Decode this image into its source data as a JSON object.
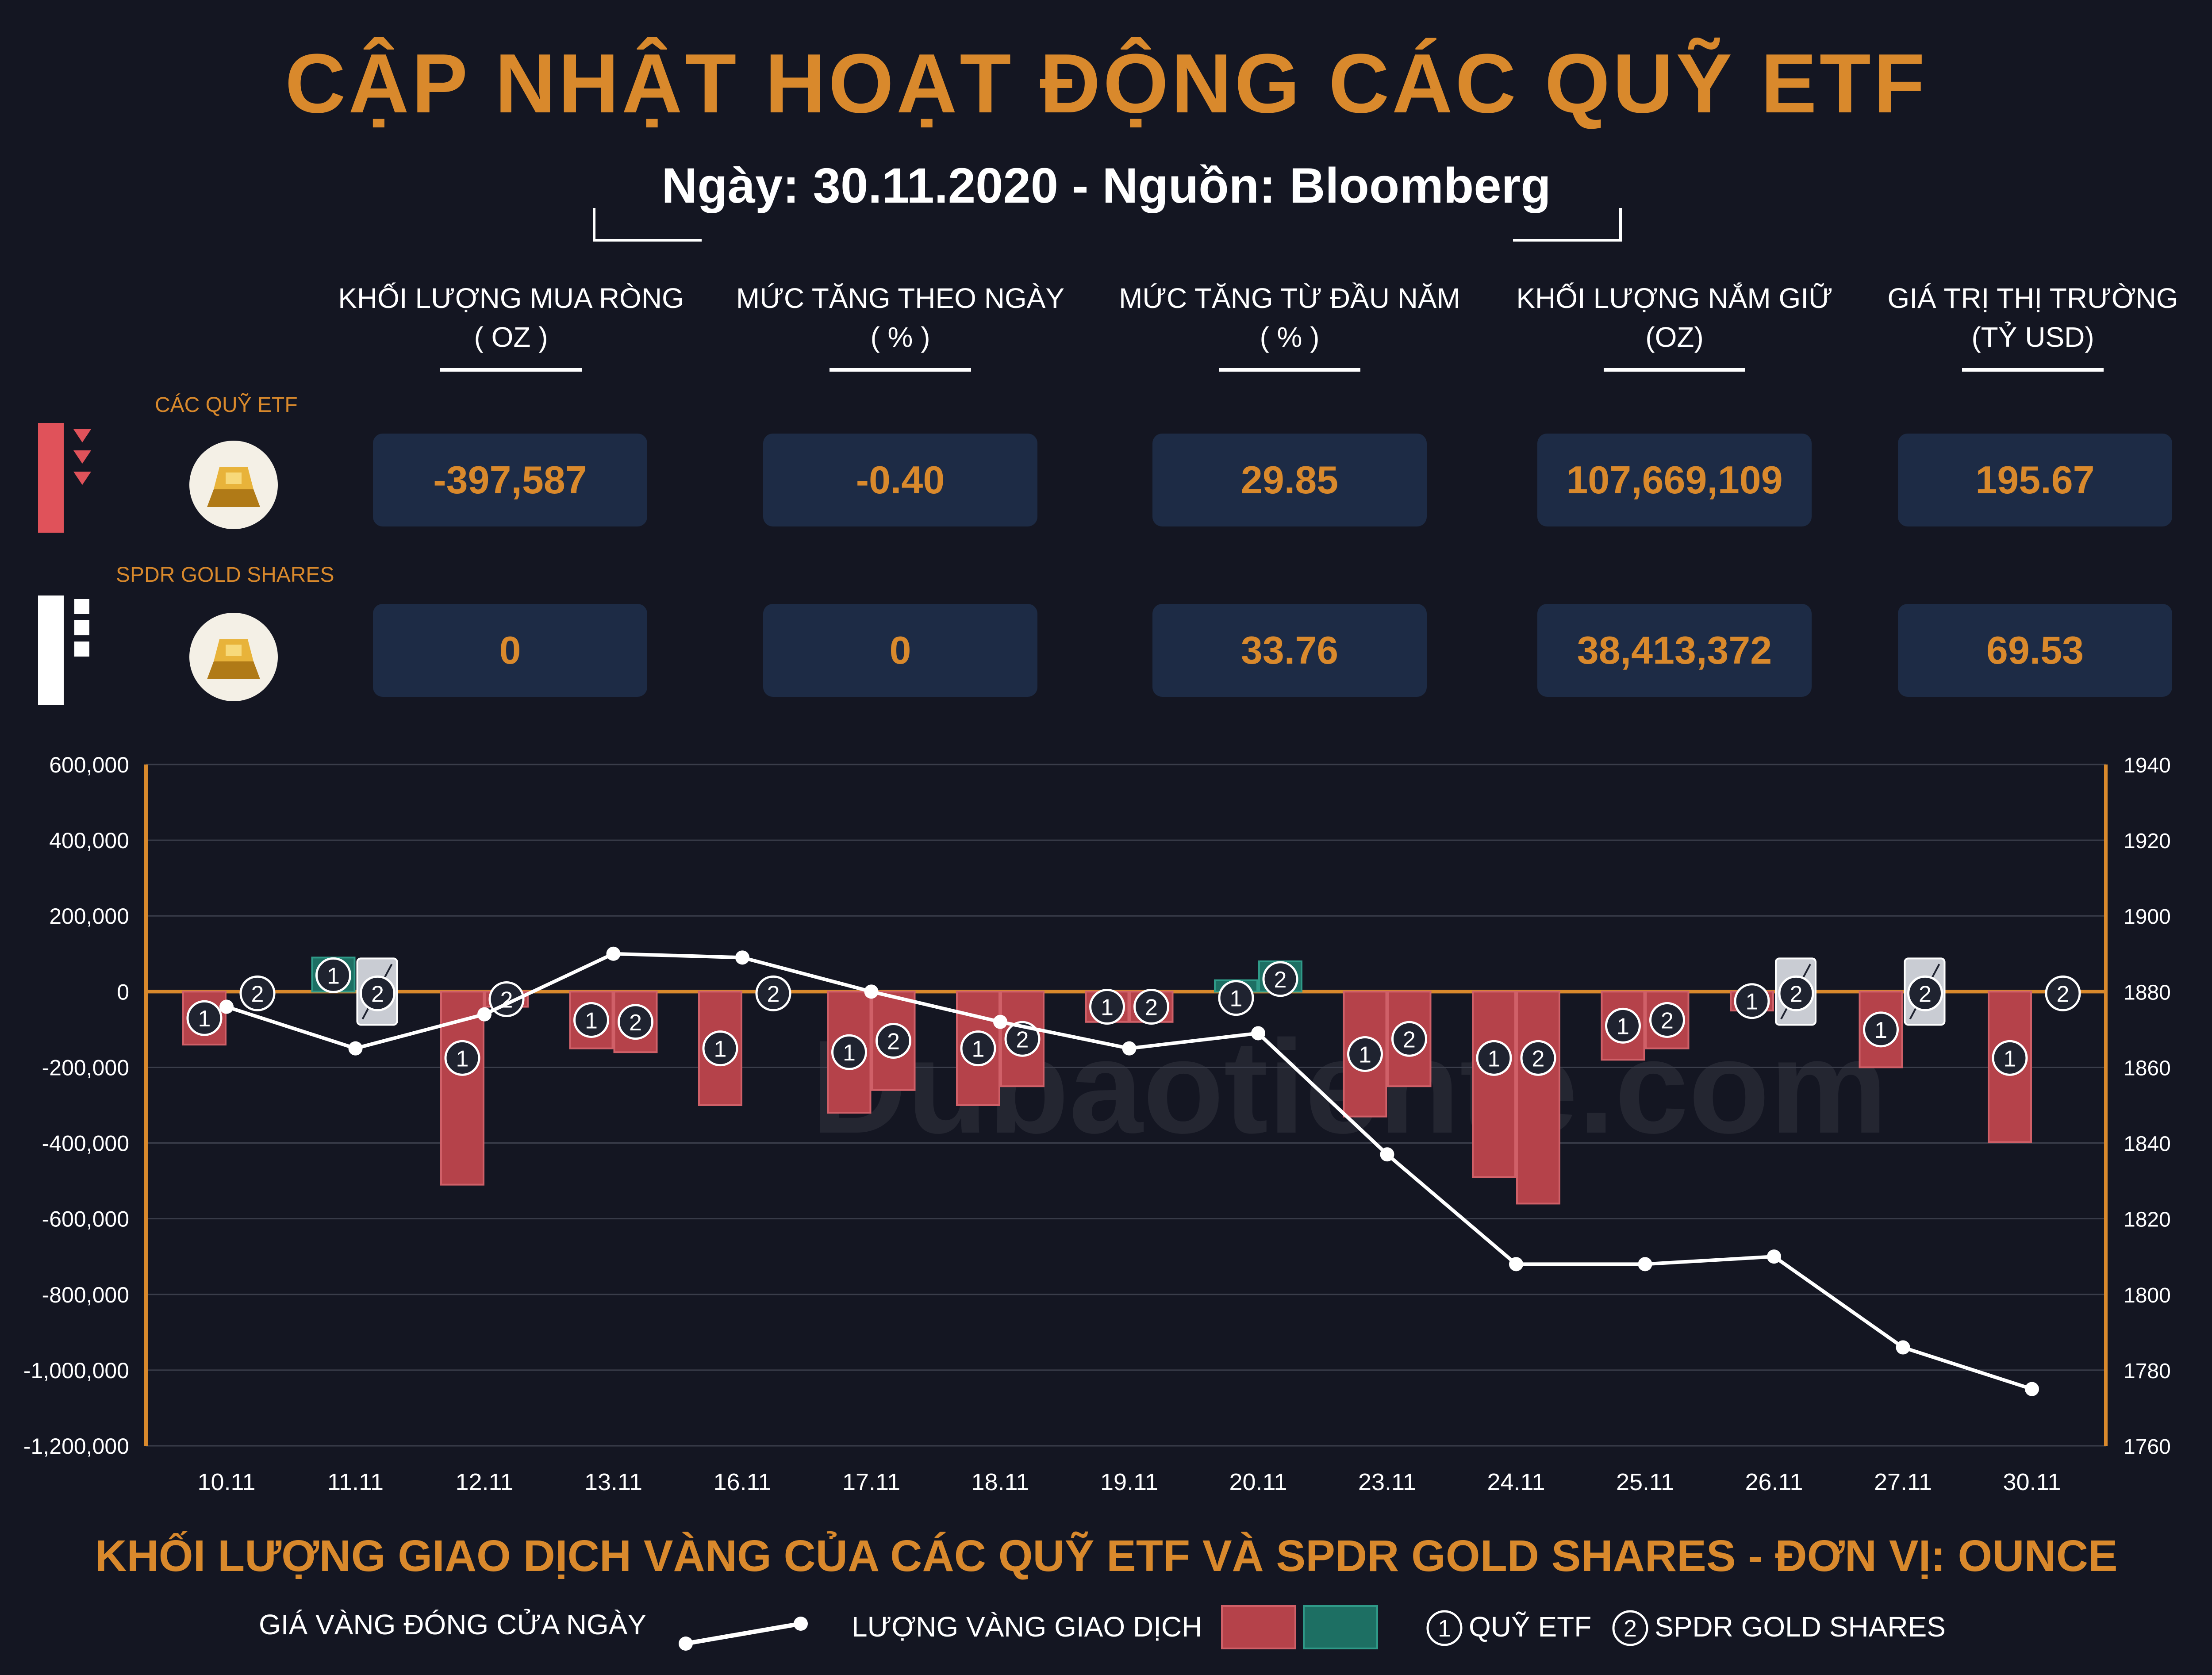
{
  "title": "CẬP NHẬT HOẠT ĐỘNG CÁC QUỸ ETF",
  "subtitle": "Ngày: 30.11.2020 - Nguồn: Bloomberg",
  "columns": [
    {
      "label": "KHỐI LƯỢNG MUA RÒNG",
      "unit": "( OZ )"
    },
    {
      "label": "MỨC TĂNG THEO NGÀY",
      "unit": "( % )"
    },
    {
      "label": "MỨC TĂNG TỪ ĐẦU NĂM",
      "unit": "( % )"
    },
    {
      "label": "KHỐI LƯỢNG NẮM GIỮ",
      "unit": "(OZ)"
    },
    {
      "label": "GIÁ TRỊ THỊ TRƯỜNG",
      "unit": "(TỶ USD)"
    }
  ],
  "rows": [
    {
      "label": "CÁC QUỸ ETF",
      "values": [
        "-397,587",
        "-0.40",
        "29.85",
        "107,669,109",
        "195.67"
      ]
    },
    {
      "label": "SPDR GOLD SHARES",
      "values": [
        "0",
        "0",
        "33.76",
        "38,413,372",
        "69.53"
      ]
    }
  ],
  "colors": {
    "accent": "#d9892c",
    "negative": "#b5424a",
    "positive": "#1d6f63",
    "box": "#1d2b45",
    "background": "#141622"
  },
  "watermark": "Dubaotiente.com",
  "chart_caption": "KHỐI LƯỢNG GIAO DỊCH VÀNG CỦA CÁC QUỸ ETF VÀ SPDR GOLD SHARES - ĐƠN VỊ: OUNCE",
  "legend": {
    "price_line": "GIÁ VÀNG ĐÓNG CỬA NGÀY",
    "volume": "LƯỢNG VÀNG GIAO DỊCH",
    "etf": "QUỸ ETF",
    "spdr": "SPDR GOLD SHARES",
    "etf_marker": "1",
    "spdr_marker": "2"
  },
  "chart_data": {
    "type": "bar",
    "categories": [
      "10.11",
      "11.11",
      "12.11",
      "13.11",
      "16.11",
      "17.11",
      "18.11",
      "19.11",
      "20.11",
      "23.11",
      "24.11",
      "25.11",
      "26.11",
      "27.11",
      "30.11"
    ],
    "series": [
      {
        "name": "QUỸ ETF",
        "values": [
          -140000,
          90000,
          -510000,
          -150000,
          -300000,
          -320000,
          -300000,
          -80000,
          30000,
          -330000,
          -490000,
          -180000,
          -50000,
          -200000,
          -397587
        ]
      },
      {
        "name": "SPDR GOLD SHARES",
        "values": [
          0,
          0,
          -40000,
          -160000,
          0,
          -260000,
          -250000,
          -80000,
          80000,
          -250000,
          -560000,
          -150000,
          0,
          0,
          0
        ]
      },
      {
        "name": "GIÁ VÀNG ĐÓNG CỬA NGÀY",
        "axis": "right",
        "type": "line",
        "values": [
          1876,
          1865,
          1874,
          1890,
          1889,
          1880,
          1872,
          1865,
          1869,
          1837,
          1808,
          1808,
          1810,
          1786,
          1775
        ]
      }
    ],
    "unchanged_markers": [
      {
        "category": "11.11",
        "series": "SPDR GOLD SHARES"
      },
      {
        "category": "26.11",
        "series": "SPDR GOLD SHARES"
      },
      {
        "category": "27.11",
        "series": "SPDR GOLD SHARES"
      }
    ],
    "y_left_ticks": [
      "600,000",
      "400,000",
      "200,000",
      "0",
      "-200,000",
      "-400,000",
      "-600,000",
      "-800,000",
      "-1,000,000",
      "-1,200,000"
    ],
    "y_right_ticks": [
      "1940",
      "1920",
      "1900",
      "1880",
      "1860",
      "1840",
      "1820",
      "1800",
      "1780",
      "1760"
    ],
    "ylim_left": [
      -1200000,
      600000
    ],
    "ylim_right": [
      1760,
      1940
    ],
    "grid": true
  }
}
